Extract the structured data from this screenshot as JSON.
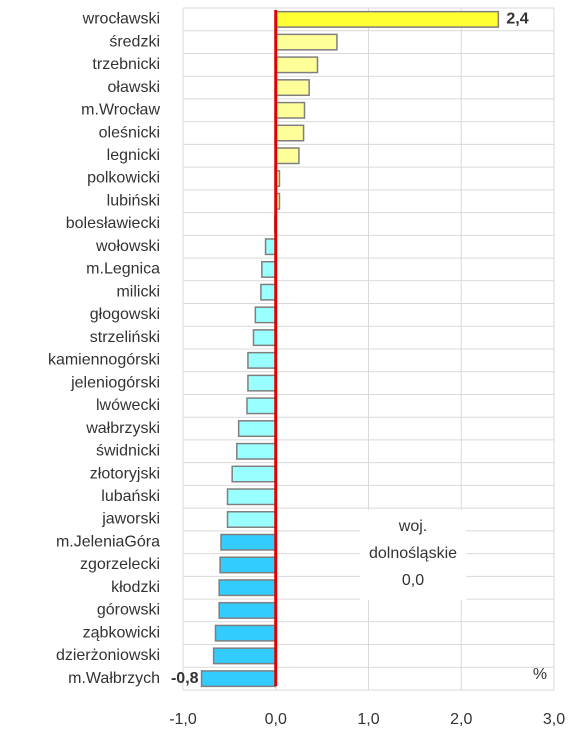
{
  "chart_data": {
    "type": "bar",
    "orientation": "horizontal",
    "categories": [
      "wrocławski",
      "średzki",
      "trzebnicki",
      "oławski",
      "m.Wrocław",
      "oleśnicki",
      "legnicki",
      "polkowicki",
      "lubiński",
      "bolesławiecki",
      "wołowski",
      "m.Legnica",
      "milicki",
      "głogowski",
      "strzeliński",
      "kamiennogórski",
      "jeleniogórski",
      "lwówecki",
      "wałbrzyski",
      "świdnicki",
      "złotoryjski",
      "lubański",
      "jaworski",
      "m.JeleniaGóra",
      "zgorzelecki",
      "kłodzki",
      "górowski",
      "ząbkowicki",
      "dzierżoniowski",
      "m.Wałbrzych"
    ],
    "values": [
      2.4,
      0.66,
      0.45,
      0.36,
      0.31,
      0.3,
      0.25,
      0.04,
      0.04,
      -0.01,
      -0.11,
      -0.15,
      -0.16,
      -0.22,
      -0.24,
      -0.3,
      -0.3,
      -0.31,
      -0.4,
      -0.42,
      -0.47,
      -0.52,
      -0.52,
      -0.59,
      -0.6,
      -0.61,
      -0.61,
      -0.65,
      -0.67,
      -0.8
    ],
    "value_labels": [
      "2,4",
      null,
      null,
      null,
      null,
      null,
      null,
      null,
      null,
      null,
      null,
      null,
      null,
      null,
      null,
      null,
      null,
      null,
      null,
      null,
      null,
      null,
      null,
      null,
      null,
      null,
      null,
      null,
      null,
      "-0,8"
    ],
    "colors": [
      "#ffff33",
      "#ffff99",
      "#ffff99",
      "#ffff99",
      "#ffff99",
      "#ffff99",
      "#ffff99",
      "#ffff99",
      "#ffff99",
      "#ffff99",
      "#99ffff",
      "#99ffff",
      "#99ffff",
      "#99ffff",
      "#99ffff",
      "#99ffff",
      "#99ffff",
      "#99ffff",
      "#99ffff",
      "#99ffff",
      "#99ffff",
      "#99ffff",
      "#99ffff",
      "#33ccff",
      "#33ccff",
      "#33ccff",
      "#33ccff",
      "#33ccff",
      "#33ccff",
      "#33ccff"
    ],
    "xlim": [
      -1,
      3
    ],
    "xticks": [
      {
        "value": -1,
        "label": "-1,0"
      },
      {
        "value": 0,
        "label": "0,0"
      },
      {
        "value": 1,
        "label": "1,0"
      },
      {
        "value": 2,
        "label": "2,0"
      },
      {
        "value": 3,
        "label": "3,0"
      }
    ],
    "grid": true,
    "unit_label": "%",
    "reference_line": {
      "value": 0,
      "color": "#e00000",
      "label": [
        "woj.",
        "dolnośląskie",
        "0,0"
      ]
    }
  }
}
